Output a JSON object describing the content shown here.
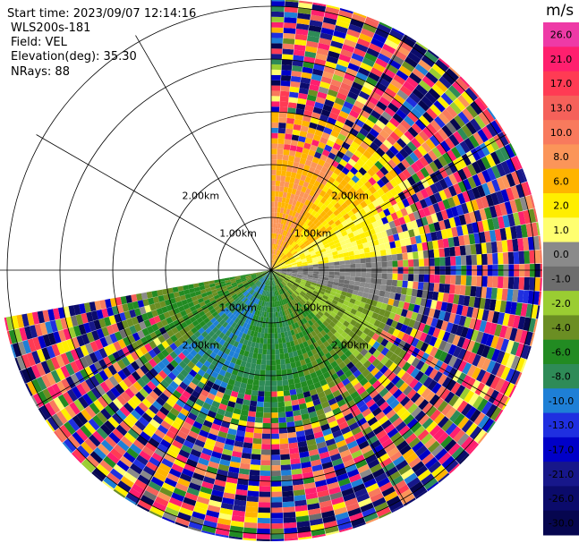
{
  "info": {
    "start_time": "Start time: 2023/09/07 12:14:16",
    "instrument": "WLS200s-181",
    "field": "Field: VEL",
    "elevation": "Elevation(deg): 35.30",
    "nrays": "NRays: 88"
  },
  "colorbar": {
    "unit": "m/s",
    "ticks": [
      "26.0",
      "21.0",
      "17.0",
      "13.0",
      "10.0",
      "8.0",
      "6.0",
      "2.0",
      "1.0",
      "0.0",
      "-1.0",
      "-2.0",
      "-4.0",
      "-6.0",
      "-8.0",
      "-10.0",
      "-13.0",
      "-17.0",
      "-21.0",
      "-26.0",
      "-30.0"
    ],
    "colors": [
      "#ee3aa6",
      "#ff1f6e",
      "#ff3b54",
      "#f5615a",
      "#f87a5d",
      "#fb9559",
      "#ffb400",
      "#ffee00",
      "#ffff70",
      "#8a8a8a",
      "#6d6d6d",
      "#9acd32",
      "#6b8e23",
      "#228b22",
      "#2e8b57",
      "#1e7fd6",
      "#1f2fe0",
      "#0000c8",
      "#17178a",
      "#0b0b6b",
      "#06064f"
    ]
  },
  "chart_data": {
    "type": "heatmap",
    "projection": "polar PPI",
    "field": "VEL",
    "units": "m/s",
    "elevation_deg": 35.3,
    "n_rays": 88,
    "range_rings_km": [
      1.0,
      2.0
    ],
    "ring_labels": [
      "1.00km",
      "2.00km"
    ],
    "color_range": [
      -30.0,
      26.0
    ],
    "coverage_deg": [
      0,
      260
    ],
    "near_field_velocity_bands": [
      {
        "azimuth_from": 0,
        "azimuth_to": 30,
        "value": 8.0
      },
      {
        "azimuth_from": 30,
        "azimuth_to": 55,
        "value": 6.0
      },
      {
        "azimuth_from": 55,
        "azimuth_to": 80,
        "value": 2.0
      },
      {
        "azimuth_from": 80,
        "azimuth_to": 105,
        "value": 0.0
      },
      {
        "azimuth_from": 105,
        "azimuth_to": 135,
        "value": -2.0
      },
      {
        "azimuth_from": 135,
        "azimuth_to": 160,
        "value": -4.0
      },
      {
        "azimuth_from": 160,
        "azimuth_to": 200,
        "value": -6.0
      },
      {
        "azimuth_from": 200,
        "azimuth_to": 230,
        "value": -8.0
      },
      {
        "azimuth_from": 230,
        "azimuth_to": 260,
        "value": -4.0
      }
    ]
  }
}
